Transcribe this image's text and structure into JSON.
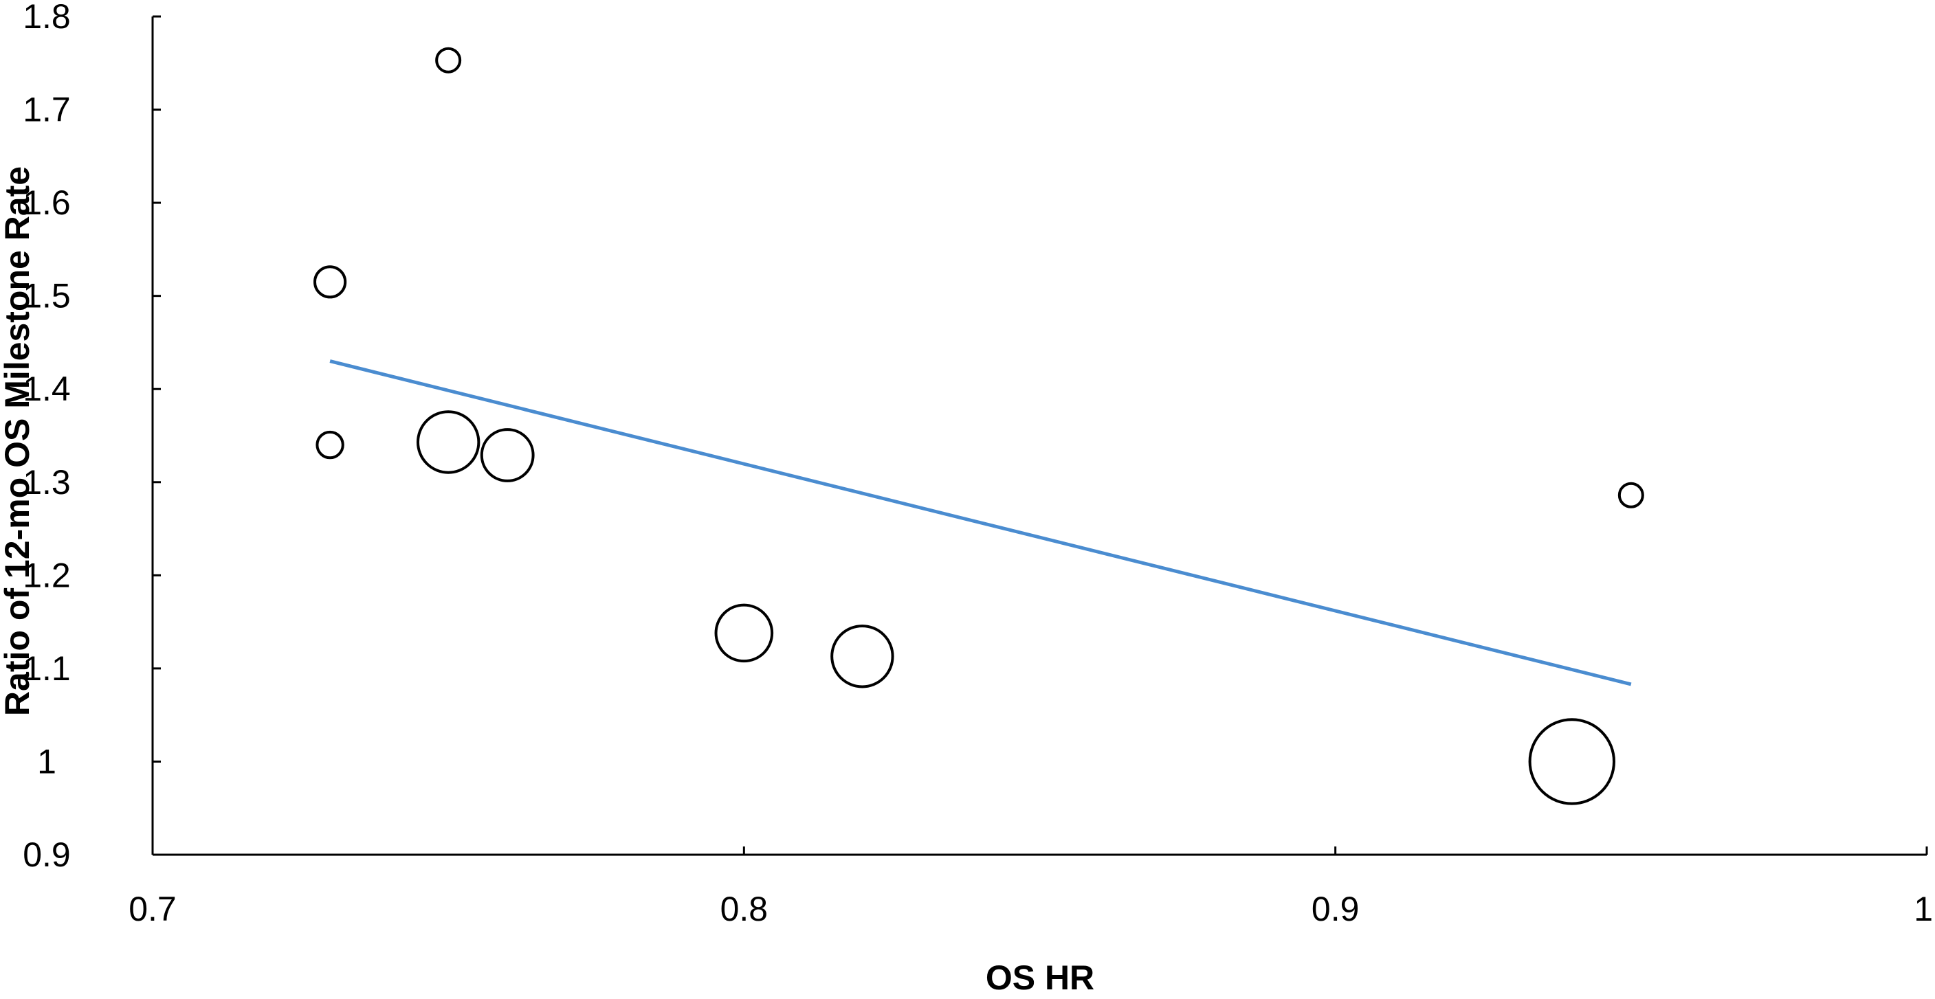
{
  "chart_data": {
    "type": "scatter",
    "xlabel": "OS HR",
    "ylabel": "Ratio of 12-mo OS Milestone Rate",
    "xlim": [
      0.7,
      1.0
    ],
    "ylim": [
      0.9,
      1.8
    ],
    "x_ticks": [
      0.7,
      0.8,
      0.9,
      1.0
    ],
    "x_tick_labels": [
      "0.7",
      "0.8",
      "0.9",
      "1"
    ],
    "y_ticks": [
      0.9,
      1.0,
      1.1,
      1.2,
      1.3,
      1.4,
      1.5,
      1.6,
      1.7,
      1.8
    ],
    "y_tick_labels": [
      "0.9",
      "1",
      "1.1",
      "1.2",
      "1.3",
      "1.4",
      "1.5",
      "1.6",
      "1.7",
      "1.8"
    ],
    "grid": false,
    "legend": "none",
    "points": [
      {
        "x": 0.75,
        "y": 1.753,
        "size": 1
      },
      {
        "x": 0.73,
        "y": 1.515,
        "size": 1.3
      },
      {
        "x": 0.73,
        "y": 1.34,
        "size": 1.1
      },
      {
        "x": 0.75,
        "y": 1.343,
        "size": 2.6
      },
      {
        "x": 0.76,
        "y": 1.329,
        "size": 2.2
      },
      {
        "x": 0.8,
        "y": 1.138,
        "size": 2.4
      },
      {
        "x": 0.82,
        "y": 1.113,
        "size": 2.6
      },
      {
        "x": 0.94,
        "y": 1.0,
        "size": 3.6
      },
      {
        "x": 0.95,
        "y": 1.286,
        "size": 1
      }
    ],
    "trendline": {
      "x": [
        0.73,
        0.95
      ],
      "y": [
        1.43,
        1.083
      ],
      "color": "#4a8cd0"
    }
  }
}
